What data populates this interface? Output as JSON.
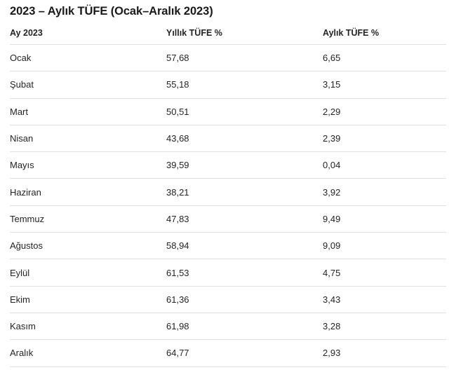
{
  "page": {
    "title": "2023 – Aylık TÜFE (Ocak–Aralık 2023)"
  },
  "colors": {
    "text": "#242424",
    "title_text": "#1a1a1a",
    "divider": "#e0e0e0",
    "background": "#ffffff"
  },
  "table": {
    "columns": [
      "Ay 2023",
      "Yıllık TÜFE %",
      "Aylık TÜFE %"
    ],
    "rows": [
      {
        "month": "Ocak",
        "yearly": "57,68",
        "monthly": "6,65"
      },
      {
        "month": "Şubat",
        "yearly": "55,18",
        "monthly": "3,15"
      },
      {
        "month": "Mart",
        "yearly": "50,51",
        "monthly": "2,29"
      },
      {
        "month": "Nisan",
        "yearly": "43,68",
        "monthly": "2,39"
      },
      {
        "month": "Mayıs",
        "yearly": "39,59",
        "monthly": "0,04"
      },
      {
        "month": "Haziran",
        "yearly": "38,21",
        "monthly": "3,92"
      },
      {
        "month": "Temmuz",
        "yearly": "47,83",
        "monthly": "9,49"
      },
      {
        "month": "Ağustos",
        "yearly": "58,94",
        "monthly": "9,09"
      },
      {
        "month": "Eylül",
        "yearly": "61,53",
        "monthly": "4,75"
      },
      {
        "month": "Ekim",
        "yearly": "61,36",
        "monthly": "3,43"
      },
      {
        "month": "Kasım",
        "yearly": "61,98",
        "monthly": "3,28"
      },
      {
        "month": "Aralık",
        "yearly": "64,77",
        "monthly": "2,93"
      }
    ]
  },
  "chart_data": {
    "type": "table",
    "title": "2023 – Aylık TÜFE (Ocak–Aralık 2023)",
    "columns": [
      "Ay 2023",
      "Yıllık TÜFE %",
      "Aylık TÜFE %"
    ],
    "categories": [
      "Ocak",
      "Şubat",
      "Mart",
      "Nisan",
      "Mayıs",
      "Haziran",
      "Temmuz",
      "Ağustos",
      "Eylül",
      "Ekim",
      "Kasım",
      "Aralık"
    ],
    "series": [
      {
        "name": "Yıllık TÜFE %",
        "values": [
          57.68,
          55.18,
          50.51,
          43.68,
          39.59,
          38.21,
          47.83,
          58.94,
          61.53,
          61.36,
          61.98,
          64.77
        ]
      },
      {
        "name": "Aylık TÜFE %",
        "values": [
          6.65,
          3.15,
          2.29,
          2.39,
          0.04,
          3.92,
          9.49,
          9.09,
          4.75,
          3.43,
          3.28,
          2.93
        ]
      }
    ]
  }
}
